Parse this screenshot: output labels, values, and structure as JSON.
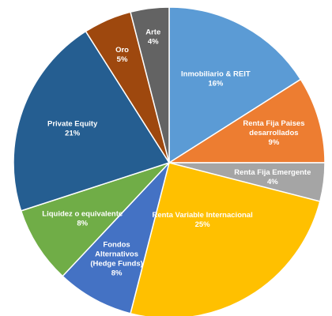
{
  "chart_data": {
    "type": "pie",
    "start_angle_deg": 0,
    "direction": "clockwise",
    "slices": [
      {
        "label": "Inmobiliario & REIT",
        "value_label": "16%",
        "value": 16,
        "color": "#5B9BD5"
      },
      {
        "label": "Renta Fija Paises desarrollados",
        "value_label": "9%",
        "value": 9,
        "color": "#ED7D31"
      },
      {
        "label": "Renta Fija Emergente",
        "value_label": "4%",
        "value": 4,
        "color": "#A5A5A5"
      },
      {
        "label": "Renta Variable Internacional",
        "value_label": "25%",
        "value": 25,
        "color": "#FFC000"
      },
      {
        "label": "Fondos Alternativos (Hedge Funds)",
        "value_label": "8%",
        "value": 8,
        "color": "#4472C4"
      },
      {
        "label": "Liquidez o equivalente",
        "value_label": "8%",
        "value": 8,
        "color": "#70AD47"
      },
      {
        "label": "Private Equity",
        "value_label": "21%",
        "value": 21,
        "color": "#255E91"
      },
      {
        "label": "Oro",
        "value_label": "5%",
        "value": 5,
        "color": "#9E480E"
      },
      {
        "label": "Arte",
        "value_label": "4%",
        "value": 4,
        "color": "#636363"
      }
    ]
  }
}
